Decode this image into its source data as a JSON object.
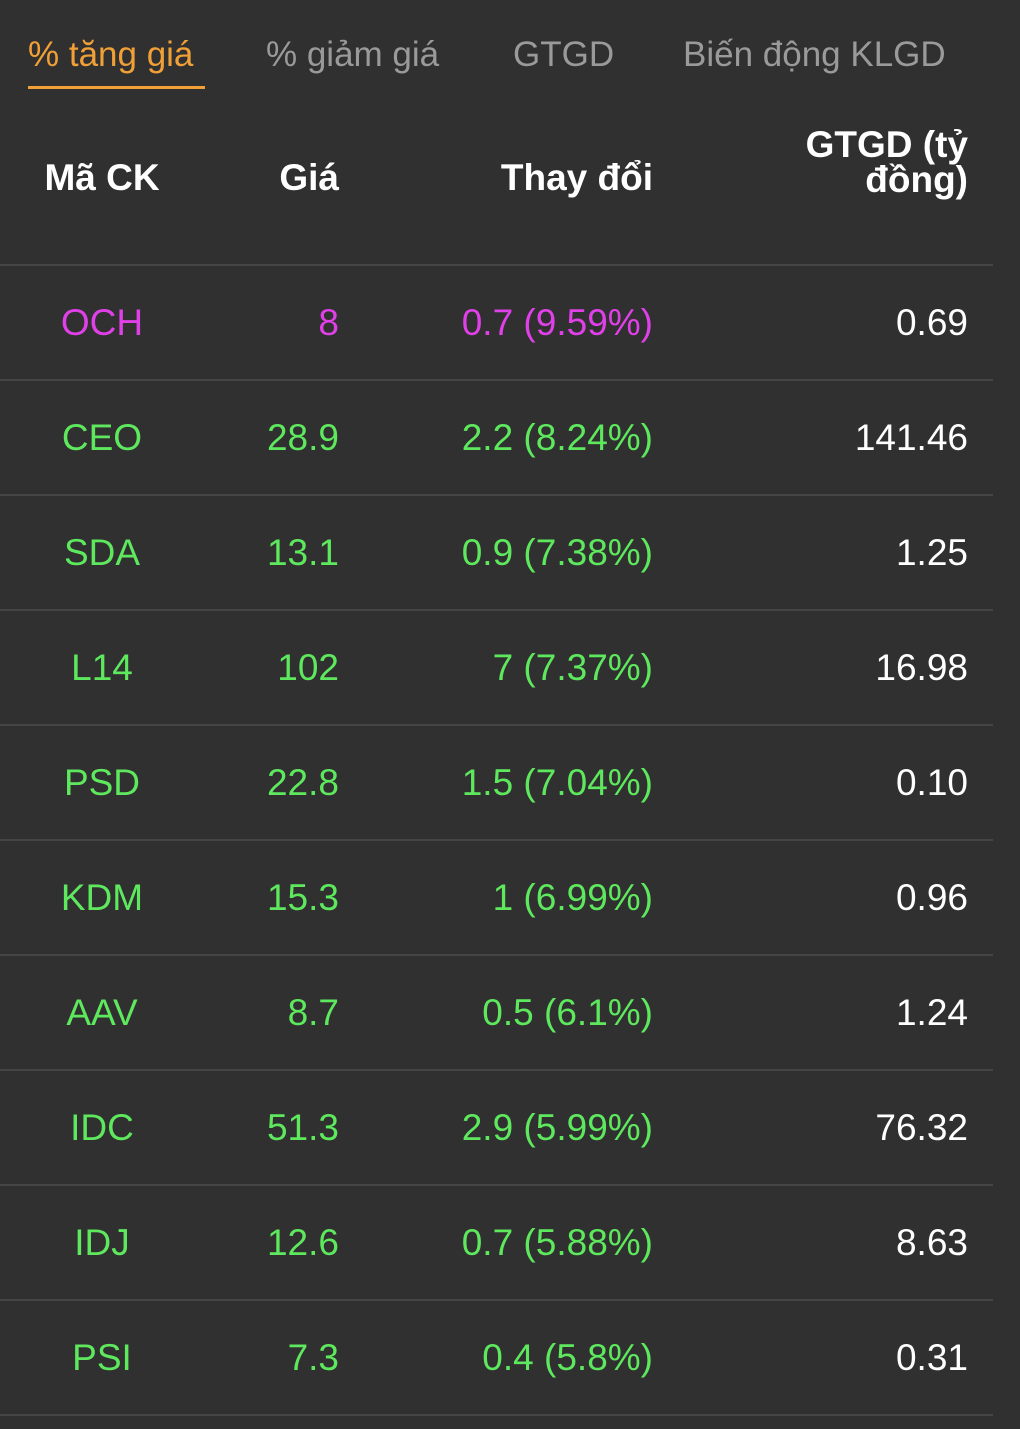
{
  "colors": {
    "background": "#303030",
    "active_tab": "#f0a036",
    "inactive_tab": "#9a9a9a",
    "ceiling": "#e040e8",
    "up": "#5ee85e",
    "value": "#ffffff",
    "divider": "#454545"
  },
  "tabs": [
    {
      "label": "% tăng giá",
      "active": true
    },
    {
      "label": "% giảm giá",
      "active": false
    },
    {
      "label": "GTGD",
      "active": false
    },
    {
      "label": "Biến động KLGD",
      "active": false
    }
  ],
  "table": {
    "headers": {
      "code": "Mã CK",
      "price": "Giá",
      "change": "Thay đổi",
      "value_line1": "GTGD (tỷ",
      "value_line2": "đồng)"
    },
    "rows": [
      {
        "code": "OCH",
        "price": "8",
        "change": "0.7 (9.59%)",
        "value": "0.69",
        "status": "ceiling"
      },
      {
        "code": "CEO",
        "price": "28.9",
        "change": "2.2 (8.24%)",
        "value": "141.46",
        "status": "up"
      },
      {
        "code": "SDA",
        "price": "13.1",
        "change": "0.9 (7.38%)",
        "value": "1.25",
        "status": "up"
      },
      {
        "code": "L14",
        "price": "102",
        "change": "7 (7.37%)",
        "value": "16.98",
        "status": "up"
      },
      {
        "code": "PSD",
        "price": "22.8",
        "change": "1.5 (7.04%)",
        "value": "0.10",
        "status": "up"
      },
      {
        "code": "KDM",
        "price": "15.3",
        "change": "1 (6.99%)",
        "value": "0.96",
        "status": "up"
      },
      {
        "code": "AAV",
        "price": "8.7",
        "change": "0.5 (6.1%)",
        "value": "1.24",
        "status": "up"
      },
      {
        "code": "IDC",
        "price": "51.3",
        "change": "2.9 (5.99%)",
        "value": "76.32",
        "status": "up"
      },
      {
        "code": "IDJ",
        "price": "12.6",
        "change": "0.7 (5.88%)",
        "value": "8.63",
        "status": "up"
      },
      {
        "code": "PSI",
        "price": "7.3",
        "change": "0.4 (5.8%)",
        "value": "0.31",
        "status": "up"
      }
    ]
  }
}
